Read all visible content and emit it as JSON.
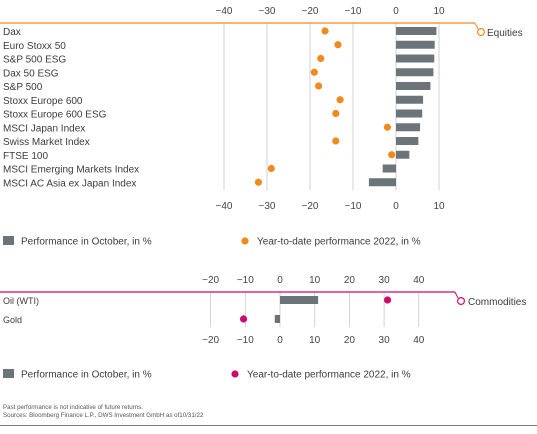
{
  "colors": {
    "bar": "#6b7479",
    "equities_accent": "#f08a1c",
    "commodities_accent": "#cc0a6b",
    "grid": "#c7c7c7",
    "axis_text": "#444444",
    "label_text": "#3c3c3c"
  },
  "chart_data": [
    {
      "type": "bar",
      "group_label": "Equities",
      "categories": [
        "Dax",
        "Euro Stoxx 50",
        "S&P 500 ESG",
        "Dax 50 ESG",
        "S&P 500",
        "Stoxx Europe 600",
        "Stoxx Europe 600 ESG",
        "MSCI Japan Index",
        "Swiss Market Index",
        "FTSE 100",
        "MSCI Emerging Markets Index",
        "MSCI AC Asia ex Japan Index"
      ],
      "series": [
        {
          "name": "Performance in October, in %",
          "marker": "bar",
          "values": [
            9.4,
            9.0,
            8.9,
            8.7,
            8.0,
            6.3,
            6.1,
            5.6,
            5.2,
            3.1,
            -3.1,
            -6.3
          ]
        },
        {
          "name": "Year-to-date performance 2022, in %",
          "marker": "dot",
          "values": [
            -16.5,
            -13.5,
            -17.5,
            -19.0,
            -18.0,
            -13.0,
            -14.0,
            -2.0,
            -14.0,
            -1.0,
            -29.0,
            -32.0
          ]
        }
      ],
      "xlim": [
        -45,
        15
      ],
      "xticks": [
        -40,
        -30,
        -20,
        -10,
        0,
        10
      ],
      "grid": true,
      "legend_position": "bottom"
    },
    {
      "type": "bar",
      "group_label": "Commodities",
      "categories": [
        "Oil (WTI)",
        "Gold"
      ],
      "series": [
        {
          "name": "Performance in October, in %",
          "marker": "bar",
          "values": [
            11.0,
            -1.5
          ]
        },
        {
          "name": "Year-to-date performance 2022, in %",
          "marker": "dot",
          "values": [
            31.0,
            -10.5
          ]
        }
      ],
      "xlim": [
        -30,
        50
      ],
      "xticks": [
        -20,
        -10,
        0,
        10,
        20,
        30,
        40
      ],
      "grid": true,
      "legend_position": "bottom"
    }
  ],
  "footnotes": [
    "Past performance is not indicative of future returns.",
    "Sources: Bloomberg Finance L.P., DWS Investment GmbH as of10/31/22"
  ]
}
